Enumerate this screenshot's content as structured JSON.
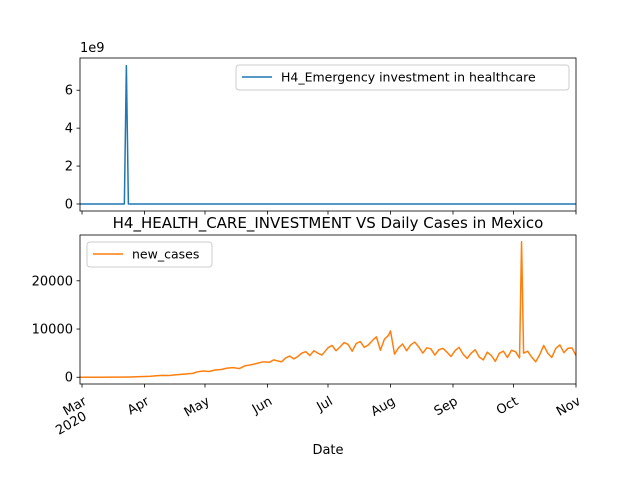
{
  "chart_data": [
    {
      "type": "line",
      "title": "",
      "xlabel": "",
      "ylabel": "",
      "y_offset_text": "1e9",
      "xlim": [
        "2020-02-29",
        "2020-11-01"
      ],
      "ylim": [
        -0.37,
        7.7
      ],
      "yticks": [
        0,
        2,
        4,
        6
      ],
      "grid": false,
      "legend_position": "upper right",
      "series": [
        {
          "name": "H4_Emergency investment in healthcare",
          "color": "#1f77b4",
          "points": [
            [
              "2020-02-29",
              0
            ],
            [
              "2020-03-22",
              0
            ],
            [
              "2020-03-23",
              7.3
            ],
            [
              "2020-03-24",
              0
            ],
            [
              "2020-11-01",
              0
            ]
          ]
        }
      ]
    },
    {
      "type": "line",
      "title": "H4_HEALTH_CARE_INVESTMENT VS Daily Cases in Mexico",
      "xlabel": "Date",
      "ylabel": "",
      "xlim": [
        "2020-02-29",
        "2020-11-01"
      ],
      "ylim": [
        -1400,
        29500
      ],
      "yticks": [
        0,
        10000,
        20000
      ],
      "xticks": [
        {
          "date": "2020-03-01",
          "label": "Mar",
          "year_label": "2020"
        },
        {
          "date": "2020-04-01",
          "label": "Apr"
        },
        {
          "date": "2020-05-01",
          "label": "May"
        },
        {
          "date": "2020-06-01",
          "label": "Jun"
        },
        {
          "date": "2020-07-01",
          "label": "Jul"
        },
        {
          "date": "2020-08-01",
          "label": "Aug"
        },
        {
          "date": "2020-09-01",
          "label": "Sep"
        },
        {
          "date": "2020-10-01",
          "label": "Oct"
        },
        {
          "date": "2020-11-01",
          "label": "Nov"
        }
      ],
      "grid": false,
      "legend_position": "upper left",
      "series": [
        {
          "name": "new_cases",
          "color": "#ff7f0e",
          "points": [
            [
              "2020-02-29",
              0
            ],
            [
              "2020-03-05",
              0
            ],
            [
              "2020-03-10",
              2
            ],
            [
              "2020-03-15",
              15
            ],
            [
              "2020-03-20",
              30
            ],
            [
              "2020-03-25",
              60
            ],
            [
              "2020-03-28",
              100
            ],
            [
              "2020-04-01",
              150
            ],
            [
              "2020-04-04",
              200
            ],
            [
              "2020-04-07",
              300
            ],
            [
              "2020-04-10",
              400
            ],
            [
              "2020-04-13",
              350
            ],
            [
              "2020-04-16",
              500
            ],
            [
              "2020-04-19",
              600
            ],
            [
              "2020-04-22",
              700
            ],
            [
              "2020-04-25",
              800
            ],
            [
              "2020-04-27",
              1100
            ],
            [
              "2020-04-30",
              1300
            ],
            [
              "2020-05-03",
              1200
            ],
            [
              "2020-05-06",
              1500
            ],
            [
              "2020-05-09",
              1600
            ],
            [
              "2020-05-12",
              1900
            ],
            [
              "2020-05-15",
              2000
            ],
            [
              "2020-05-18",
              1800
            ],
            [
              "2020-05-21",
              2400
            ],
            [
              "2020-05-24",
              2600
            ],
            [
              "2020-05-27",
              2900
            ],
            [
              "2020-05-30",
              3200
            ],
            [
              "2020-06-02",
              3100
            ],
            [
              "2020-06-04",
              3600
            ],
            [
              "2020-06-06",
              3400
            ],
            [
              "2020-06-08",
              3200
            ],
            [
              "2020-06-10",
              4000
            ],
            [
              "2020-06-12",
              4400
            ],
            [
              "2020-06-14",
              3800
            ],
            [
              "2020-06-16",
              4300
            ],
            [
              "2020-06-18",
              5000
            ],
            [
              "2020-06-20",
              5300
            ],
            [
              "2020-06-22",
              4500
            ],
            [
              "2020-06-24",
              5500
            ],
            [
              "2020-06-26",
              5000
            ],
            [
              "2020-06-28",
              4600
            ],
            [
              "2020-07-01",
              6100
            ],
            [
              "2020-07-03",
              6600
            ],
            [
              "2020-07-05",
              5500
            ],
            [
              "2020-07-07",
              6300
            ],
            [
              "2020-07-09",
              7200
            ],
            [
              "2020-07-11",
              6800
            ],
            [
              "2020-07-13",
              5400
            ],
            [
              "2020-07-15",
              7000
            ],
            [
              "2020-07-17",
              7400
            ],
            [
              "2020-07-19",
              6200
            ],
            [
              "2020-07-21",
              6700
            ],
            [
              "2020-07-23",
              7600
            ],
            [
              "2020-07-25",
              8400
            ],
            [
              "2020-07-27",
              5600
            ],
            [
              "2020-07-29",
              7900
            ],
            [
              "2020-07-31",
              8700
            ],
            [
              "2020-08-01",
              9600
            ],
            [
              "2020-08-03",
              4800
            ],
            [
              "2020-08-05",
              6100
            ],
            [
              "2020-08-07",
              6900
            ],
            [
              "2020-08-09",
              5500
            ],
            [
              "2020-08-11",
              6700
            ],
            [
              "2020-08-13",
              7300
            ],
            [
              "2020-08-15",
              6300
            ],
            [
              "2020-08-17",
              5000
            ],
            [
              "2020-08-19",
              6100
            ],
            [
              "2020-08-21",
              5900
            ],
            [
              "2020-08-23",
              4600
            ],
            [
              "2020-08-25",
              5700
            ],
            [
              "2020-08-27",
              6000
            ],
            [
              "2020-08-29",
              5200
            ],
            [
              "2020-08-31",
              4300
            ],
            [
              "2020-09-02",
              5500
            ],
            [
              "2020-09-04",
              6200
            ],
            [
              "2020-09-06",
              4800
            ],
            [
              "2020-09-08",
              3900
            ],
            [
              "2020-09-10",
              5000
            ],
            [
              "2020-09-12",
              5700
            ],
            [
              "2020-09-14",
              4200
            ],
            [
              "2020-09-16",
              3600
            ],
            [
              "2020-09-18",
              5200
            ],
            [
              "2020-09-20",
              4500
            ],
            [
              "2020-09-22",
              3300
            ],
            [
              "2020-09-24",
              5000
            ],
            [
              "2020-09-26",
              5400
            ],
            [
              "2020-09-28",
              4100
            ],
            [
              "2020-09-30",
              5600
            ],
            [
              "2020-10-02",
              5300
            ],
            [
              "2020-10-04",
              4000
            ],
            [
              "2020-10-05",
              28100
            ],
            [
              "2020-10-06",
              5000
            ],
            [
              "2020-10-08",
              5400
            ],
            [
              "2020-10-10",
              4200
            ],
            [
              "2020-10-12",
              3200
            ],
            [
              "2020-10-14",
              4700
            ],
            [
              "2020-10-16",
              6600
            ],
            [
              "2020-10-18",
              5000
            ],
            [
              "2020-10-20",
              4100
            ],
            [
              "2020-10-22",
              6000
            ],
            [
              "2020-10-24",
              6700
            ],
            [
              "2020-10-26",
              5100
            ],
            [
              "2020-10-28",
              6000
            ],
            [
              "2020-10-30",
              6100
            ],
            [
              "2020-11-01",
              4500
            ]
          ]
        }
      ]
    }
  ]
}
